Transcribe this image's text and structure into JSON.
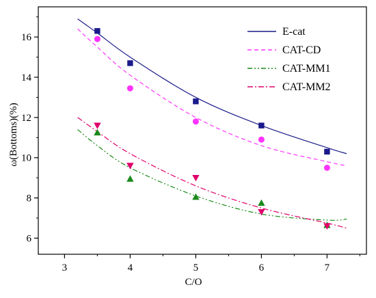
{
  "chart_data": {
    "type": "scatter",
    "xlabel": "C/O",
    "ylabel": "ω(Bottoms)(%)",
    "xlim": [
      2.6,
      7.6
    ],
    "ylim": [
      5.2,
      17.5
    ],
    "xticks": [
      3,
      4,
      5,
      6,
      7
    ],
    "yticks": [
      6,
      8,
      10,
      12,
      14,
      16
    ],
    "grid": false,
    "legend_position": "top-right",
    "series": [
      {
        "name": "E-cat",
        "color": "#1a1a8c",
        "marker": "square",
        "line_style": "solid",
        "x": [
          3.5,
          4,
          5,
          6,
          7
        ],
        "y": [
          16.3,
          14.7,
          12.8,
          11.6,
          10.3
        ],
        "fit": {
          "x": [
            3.2,
            3.5,
            4,
            5,
            6,
            7,
            7.3
          ],
          "y": [
            16.9,
            16.2,
            15.0,
            13.0,
            11.6,
            10.5,
            10.2
          ]
        }
      },
      {
        "name": "CAT-CD",
        "color": "#ff33ff",
        "marker": "circle",
        "line_style": "dashed",
        "x": [
          3.5,
          4,
          5,
          6,
          7
        ],
        "y": [
          15.9,
          13.45,
          11.8,
          10.9,
          9.5
        ],
        "fit": {
          "x": [
            3.2,
            3.5,
            4,
            5,
            6,
            7,
            7.3
          ],
          "y": [
            16.4,
            15.5,
            14.1,
            12.0,
            10.6,
            9.8,
            9.6
          ]
        }
      },
      {
        "name": "CAT-MM1",
        "color": "#1a8a1a",
        "marker": "triangle-up",
        "line_style": "dash-dot-dot",
        "x": [
          3.5,
          4,
          5,
          6,
          7
        ],
        "y": [
          11.25,
          8.95,
          8.05,
          7.75,
          6.65
        ],
        "fit": {
          "x": [
            3.2,
            3.5,
            4,
            5,
            6,
            7,
            7.3
          ],
          "y": [
            11.4,
            10.6,
            9.5,
            8.1,
            7.2,
            6.9,
            6.95
          ]
        }
      },
      {
        "name": "CAT-MM2",
        "color": "#e0006a",
        "marker": "triangle-down",
        "line_style": "dash-dot",
        "x": [
          3.5,
          4,
          5,
          6,
          7
        ],
        "y": [
          11.6,
          9.6,
          9.0,
          7.3,
          6.6
        ],
        "fit": {
          "x": [
            3.2,
            3.5,
            4,
            5,
            6,
            7,
            7.3
          ],
          "y": [
            12.0,
            11.3,
            10.2,
            8.6,
            7.5,
            6.75,
            6.5
          ]
        }
      }
    ]
  }
}
